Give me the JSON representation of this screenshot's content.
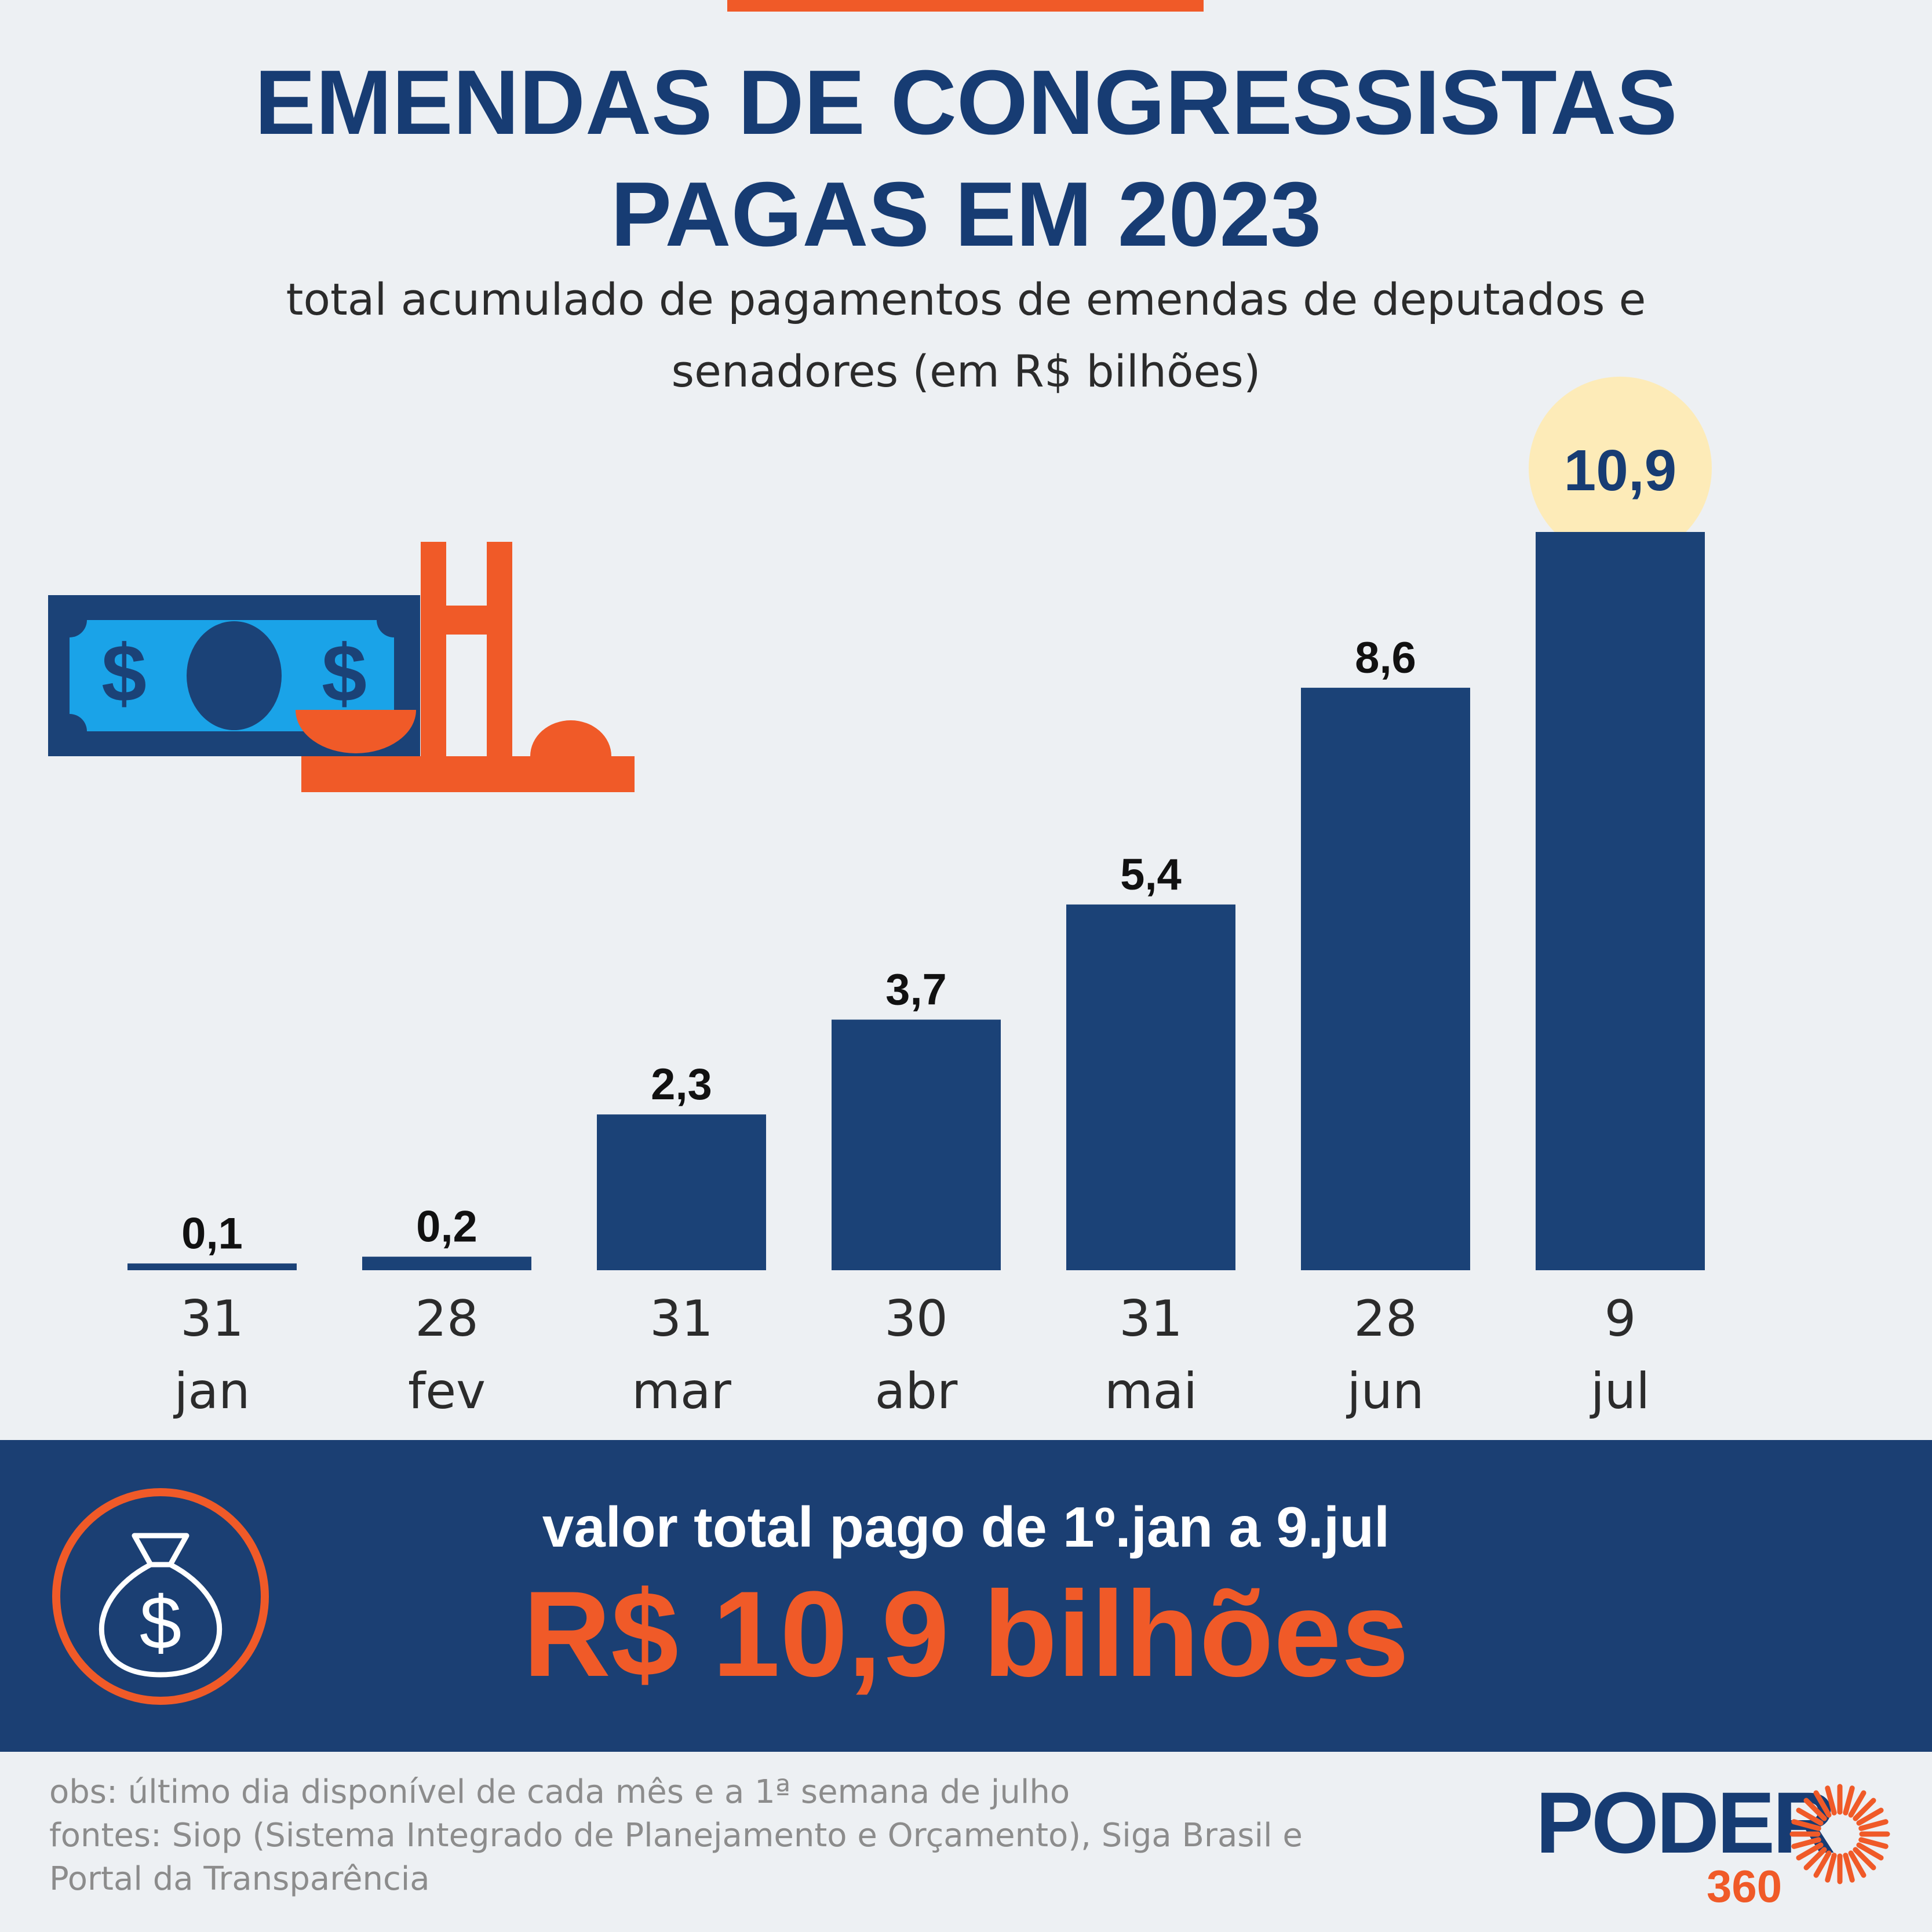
{
  "header": {
    "title_line1": "EMENDAS DE CONGRESSISTAS",
    "title_line2": "PAGAS EM 2023",
    "subtitle_line1": "total acumulado de pagamentos de emendas de deputados e",
    "subtitle_line2": "senadores (em R$ bilhões)"
  },
  "chart_data": {
    "type": "bar",
    "categories": [
      "31 jan",
      "28 fev",
      "31 mar",
      "30 abr",
      "31 mai",
      "28 jun",
      "9 jul"
    ],
    "category_days": [
      "31",
      "28",
      "31",
      "30",
      "31",
      "28",
      "9"
    ],
    "category_months": [
      "jan",
      "fev",
      "mar",
      "abr",
      "mai",
      "jun",
      "jul"
    ],
    "values": [
      0.1,
      0.2,
      2.3,
      3.7,
      5.4,
      8.6,
      10.9
    ],
    "value_labels": [
      "0,1",
      "0,2",
      "2,3",
      "3,7",
      "5,4",
      "8,6",
      "10,9"
    ],
    "title": "EMENDAS DE CONGRESSISTAS PAGAS EM 2023",
    "xlabel": "",
    "ylabel": "",
    "ylim": [
      0,
      10.9
    ],
    "grid": false,
    "highlight_index": 6,
    "bar_color": "#1b4277",
    "highlight_color": "#fdebb8"
  },
  "summary": {
    "label": "valor total pago de 1º.jan a 9.jul",
    "value": "R$ 10,9 bilhões"
  },
  "footer": {
    "note": "obs: último dia disponível de cada mês e a 1ª semana de julho",
    "sources_line1": "fontes: Siop (Sistema Integrado de Planejamento e Orçamento), Siga Brasil e",
    "sources_line2": "Portal da Transparência"
  },
  "logo": {
    "word": "PODER",
    "number": "360"
  },
  "icons": {
    "illustration": "money-congress-icon",
    "summary": "money-bag-icon",
    "logo_mark": "sunburst-icon"
  },
  "colors": {
    "navy": "#173c73",
    "band": "#1b3f73",
    "orange": "#f05a28",
    "bill_blue": "#1aa3e8",
    "background": "#edf0f3"
  }
}
